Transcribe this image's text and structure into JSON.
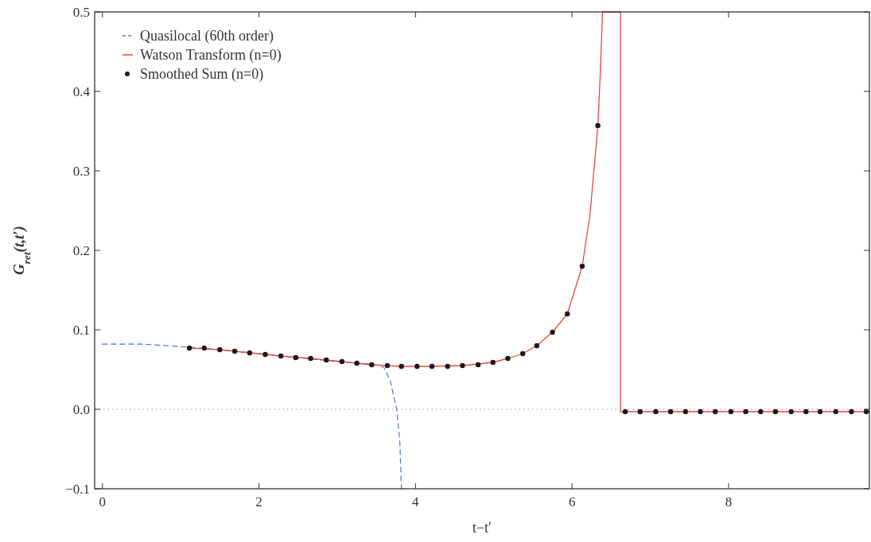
{
  "chart_data": {
    "type": "line",
    "xlabel": "t−t′",
    "ylabel": "G$_{ret}$(t,t′)",
    "xlim": [
      -0.1,
      9.8
    ],
    "ylim": [
      -0.1,
      0.5
    ],
    "xticks": [
      0,
      2,
      4,
      6,
      8
    ],
    "yticks": [
      {
        "value": -0.1,
        "label": "−0.1"
      },
      {
        "value": 0,
        "label": "0.0"
      },
      0.1,
      0.2,
      0.3,
      0.4,
      0.5
    ],
    "grid": false,
    "legend": "top left",
    "ref_lines": [
      {
        "axis": "y",
        "value": 0,
        "color": "#999999",
        "line_style": "dotted"
      }
    ],
    "series": [
      {
        "name": "Quasilocal (60th order)",
        "color": "#5b7fd6",
        "line_style": "dashed",
        "marker": "none",
        "x": [
          0,
          0.5,
          1.0,
          1.5,
          2.0,
          2.5,
          3.0,
          3.4,
          3.55,
          3.6,
          3.68,
          3.76,
          3.8,
          3.82
        ],
        "values": [
          0.082,
          0.082,
          0.079,
          0.075,
          0.07,
          0.065,
          0.06,
          0.057,
          0.055,
          0.052,
          0.035,
          0.0,
          -0.042,
          -0.1
        ]
      },
      {
        "name": "Watson Transform (n=0)",
        "color": "#e8483c",
        "line_style": "solid",
        "marker": "none",
        "x": [
          1.11,
          1.5,
          1.88,
          2.28,
          2.66,
          3.06,
          3.44,
          3.82,
          4.21,
          4.6,
          4.99,
          5.18,
          5.37,
          5.55,
          5.75,
          5.94,
          6.13,
          6.23,
          6.33,
          6.36,
          6.39,
          6.62,
          6.62,
          7.5,
          9.8
        ],
        "values": [
          0.077,
          0.075,
          0.071,
          0.067,
          0.064,
          0.06,
          0.056,
          0.054,
          0.054,
          0.055,
          0.059,
          0.064,
          0.07,
          0.08,
          0.097,
          0.12,
          0.18,
          0.245,
          0.357,
          0.42,
          0.5,
          0.5,
          -0.003,
          -0.003,
          -0.003
        ]
      },
      {
        "name": "Smoothed Sum (n=0)",
        "type": "scatter",
        "color": "#1a1a1a",
        "marker": "circle",
        "x": [
          1.11,
          1.3,
          1.5,
          1.69,
          1.88,
          2.08,
          2.28,
          2.47,
          2.66,
          2.86,
          3.06,
          3.25,
          3.44,
          3.64,
          3.82,
          4.02,
          4.21,
          4.41,
          4.6,
          4.8,
          4.99,
          5.18,
          5.37,
          5.55,
          5.75,
          5.94,
          6.13,
          6.33,
          6.68,
          6.87,
          7.07,
          7.26,
          7.45,
          7.64,
          7.83,
          8.03,
          8.22,
          8.41,
          8.6,
          8.8,
          8.99,
          9.17,
          9.37,
          9.57,
          9.76
        ],
        "values": [
          0.077,
          0.077,
          0.075,
          0.073,
          0.071,
          0.069,
          0.067,
          0.065,
          0.064,
          0.062,
          0.06,
          0.058,
          0.056,
          0.055,
          0.054,
          0.054,
          0.054,
          0.054,
          0.055,
          0.056,
          0.059,
          0.064,
          0.07,
          0.08,
          0.097,
          0.12,
          0.18,
          0.357,
          -0.003,
          -0.003,
          -0.003,
          -0.003,
          -0.003,
          -0.003,
          -0.003,
          -0.003,
          -0.003,
          -0.003,
          -0.003,
          -0.003,
          -0.003,
          -0.003,
          -0.003,
          -0.003,
          -0.003
        ]
      }
    ]
  }
}
